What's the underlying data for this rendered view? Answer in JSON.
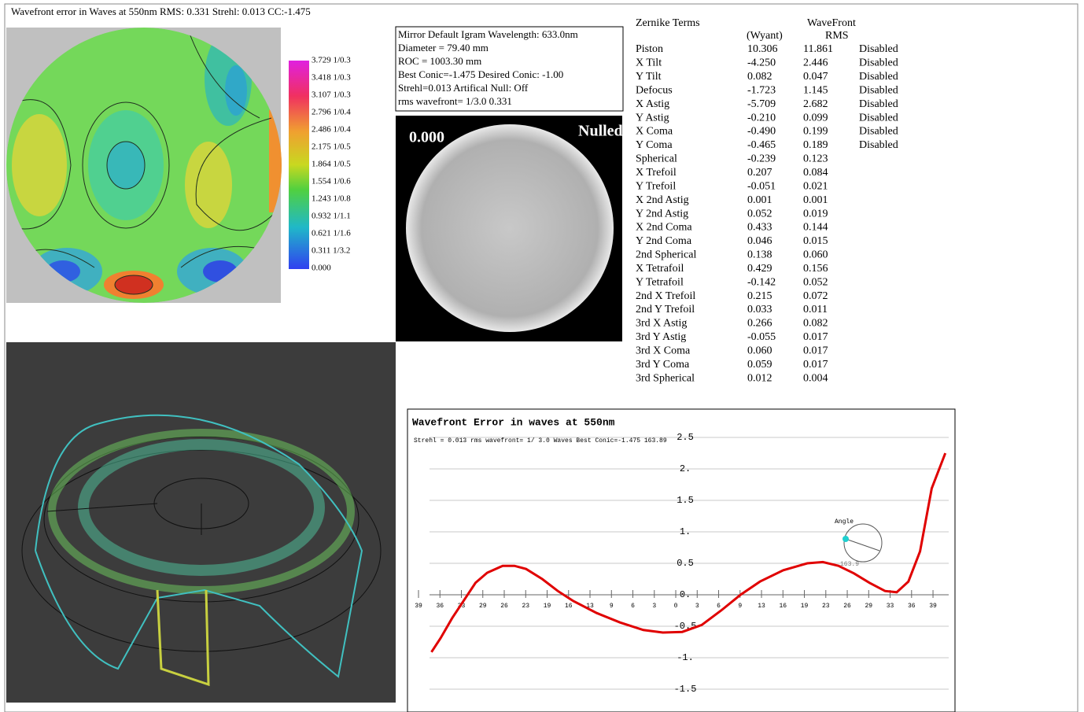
{
  "header": {
    "title": "Wavefront error in Waves at 550nm  RMS: 0.331 Strehl: 0.013 CC:-1.475"
  },
  "contour_map": {
    "colorbar_labels": [
      "3.729 1/0.3",
      "3.418 1/0.3",
      "3.107 1/0.3",
      "2.796 1/0.4",
      "2.486 1/0.4",
      "2.175 1/0.5",
      "1.864 1/0.5",
      "1.554 1/0.6",
      "1.243 1/0.8",
      "0.932 1/1.1",
      "0.621 1/1.6",
      "0.311 1/3.2",
      "0.000"
    ]
  },
  "info_box": {
    "lines": [
      "Mirror Default Igram Wavelength: 633.0nm",
      "Diameter =  79.40 mm",
      "ROC = 1003.30 mm",
      "Best Conic=-1.475 Desired Conic: -1.00",
      " Strehl=0.013  Artifical Null: Off",
      "rms wavefront= 1/3.0  0.331"
    ]
  },
  "igram": {
    "value_label": "0.000",
    "mode_label": "Nulled"
  },
  "zernike_table": {
    "title": "Zernike Terms",
    "col_wyant": "(Wyant)",
    "col_rms": [
      "WaveFront",
      "RMS"
    ],
    "rows": [
      [
        "Piston",
        "10.306",
        "11.861",
        "Disabled"
      ],
      [
        "X Tilt",
        "-4.250",
        "2.446",
        "Disabled"
      ],
      [
        "Y Tilt",
        "0.082",
        "0.047",
        "Disabled"
      ],
      [
        "Defocus",
        "-1.723",
        "1.145",
        "Disabled"
      ],
      [
        "X Astig",
        "-5.709",
        "2.682",
        "Disabled"
      ],
      [
        "Y Astig",
        "-0.210",
        "0.099",
        "Disabled"
      ],
      [
        "X Coma",
        "-0.490",
        "0.199",
        "Disabled"
      ],
      [
        "Y Coma",
        "-0.465",
        "0.189",
        "Disabled"
      ],
      [
        "Spherical",
        "-0.239",
        "0.123"
      ],
      [
        "X Trefoil",
        "0.207",
        "0.084"
      ],
      [
        "Y Trefoil",
        "-0.051",
        "0.021"
      ],
      [
        "X 2nd Astig",
        "0.001",
        "0.001"
      ],
      [
        "Y 2nd Astig",
        "0.052",
        "0.019"
      ],
      [
        "X 2nd Coma",
        "0.433",
        "0.144"
      ],
      [
        "Y 2nd Coma",
        "0.046",
        "0.015"
      ],
      [
        "2nd Spherical",
        "0.138",
        "0.060"
      ],
      [
        "X Tetrafoil",
        "0.429",
        "0.156"
      ],
      [
        "Y Tetrafoil",
        "-0.142",
        "0.052"
      ],
      [
        "2nd X Trefoil",
        "0.215",
        "0.072"
      ],
      [
        "2nd Y Trefoil",
        "0.033",
        "0.011"
      ],
      [
        "3rd X Astig",
        "0.266",
        "0.082"
      ],
      [
        "3rd Y Astig",
        "-0.055",
        "0.017"
      ],
      [
        "3rd X Coma",
        "0.060",
        "0.017"
      ],
      [
        "3rd Y Coma",
        "0.059",
        "0.017"
      ],
      [
        "3rd Spherical",
        "0.012",
        "0.004"
      ]
    ]
  },
  "chart_data": {
    "type": "line",
    "title": "Wavefront Error in waves at 550nm",
    "subtitle": "Strehl = 0.013 rms wavefront= 1/ 3.0 Waves Best Conic=-1.475 163.89",
    "angle_label": "Angle",
    "angle_value": "163.9",
    "x": [
      -37.7,
      -36.3,
      -34.5,
      -32.7,
      -30.9,
      -29.1,
      -26.7,
      -24.9,
      -23.1,
      -20.6,
      -18.2,
      -15.8,
      -12.2,
      -8.6,
      -5.0,
      -2.0,
      1.0,
      4.0,
      7.0,
      10.0,
      13.0,
      16.6,
      20.3,
      22.7,
      25.1,
      27.5,
      29.9,
      32.3,
      34.1,
      35.9,
      37.7,
      39.5,
      41.6
    ],
    "series": [
      {
        "color": "#e00000",
        "values": [
          -0.91,
          -0.69,
          -0.37,
          -0.09,
          0.19,
          0.35,
          0.46,
          0.46,
          0.41,
          0.25,
          0.06,
          -0.1,
          -0.29,
          -0.44,
          -0.56,
          -0.6,
          -0.59,
          -0.48,
          -0.25,
          0.0,
          0.21,
          0.39,
          0.5,
          0.52,
          0.46,
          0.34,
          0.19,
          0.06,
          0.04,
          0.21,
          0.69,
          1.69,
          2.25
        ]
      }
    ],
    "xlim": [
      -39.7,
      42
    ],
    "xticks": [
      {
        "value": -39.7,
        "label": "39"
      },
      {
        "value": -36.392,
        "label": "36"
      },
      {
        "value": -33.083,
        "label": "33"
      },
      {
        "value": -29.775,
        "label": "29"
      },
      {
        "value": -26.467,
        "label": "26"
      },
      {
        "value": -23.158,
        "label": "23"
      },
      {
        "value": -19.85,
        "label": "19"
      },
      {
        "value": -16.542,
        "label": "16"
      },
      {
        "value": -13.233,
        "label": "13"
      },
      {
        "value": -9.925,
        "label": "9"
      },
      {
        "value": -6.617,
        "label": "6"
      },
      {
        "value": -3.308,
        "label": "3"
      },
      0,
      {
        "value": 3.308,
        "label": "3"
      },
      {
        "value": 6.617,
        "label": "6"
      },
      {
        "value": 9.925,
        "label": "9"
      },
      {
        "value": 13.233,
        "label": "13"
      },
      {
        "value": 16.542,
        "label": "16"
      },
      {
        "value": 19.85,
        "label": "19"
      },
      {
        "value": 23.158,
        "label": "23"
      },
      {
        "value": 26.467,
        "label": "26"
      },
      {
        "value": 29.775,
        "label": "29"
      },
      {
        "value": 33.083,
        "label": "33"
      },
      {
        "value": 36.392,
        "label": "36"
      },
      {
        "value": 39.7,
        "label": "39"
      }
    ],
    "ylim": [
      -1.85,
      2.85
    ],
    "yticks": [
      2.5,
      {
        "value": 2,
        "label": "2."
      },
      1.5,
      {
        "value": 1,
        "label": "1."
      },
      0.5,
      {
        "value": 0,
        "label": "0."
      },
      -0.5,
      {
        "value": -1,
        "label": "-1."
      },
      -1.5
    ],
    "grid": true
  }
}
